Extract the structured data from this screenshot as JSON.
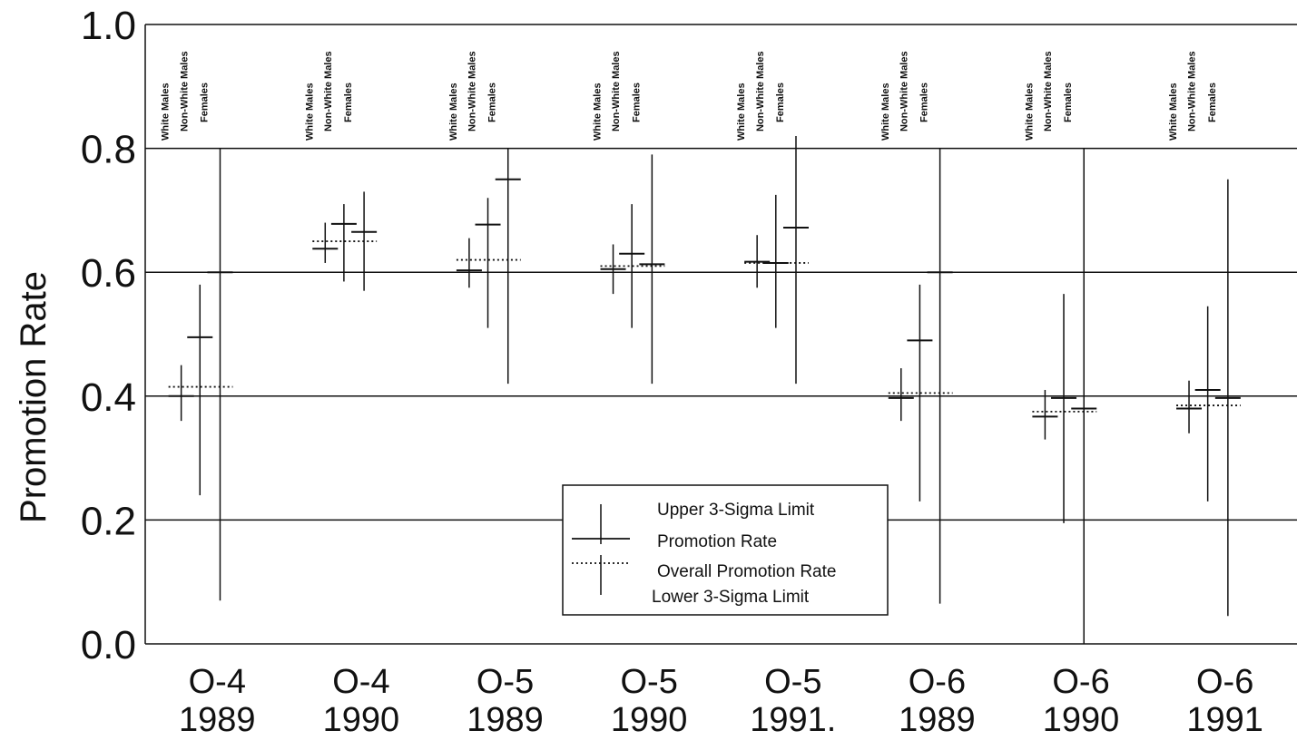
{
  "chart_data": {
    "type": "scatter",
    "title": "",
    "xlabel": "",
    "ylabel": "Promotion Rate",
    "ylim": [
      0,
      1
    ],
    "yticks": [
      "0.0",
      "0.2",
      "0.4",
      "0.6",
      "0.8",
      "1.0"
    ],
    "grid": "horizontal",
    "groups": [
      {
        "line1": "O-4",
        "line2": "1989"
      },
      {
        "line1": "O-4",
        "line2": "1990"
      },
      {
        "line1": "O-5",
        "line2": "1989"
      },
      {
        "line1": "O-5",
        "line2": "1990"
      },
      {
        "line1": "O-5",
        "line2": "1991."
      },
      {
        "line1": "O-6",
        "line2": "1989"
      },
      {
        "line1": "O-6",
        "line2": "1990"
      },
      {
        "line1": "O-6",
        "line2": "1991"
      }
    ],
    "subgroups": [
      "White Males",
      "Non-White Males",
      "Females"
    ],
    "overall_rates": [
      0.415,
      0.65,
      0.62,
      0.61,
      0.615,
      0.405,
      0.375,
      0.385
    ],
    "data": [
      [
        {
          "rate": 0.4,
          "upper": 0.45,
          "lower": 0.36
        },
        {
          "rate": 0.495,
          "upper": 0.58,
          "lower": 0.24
        },
        {
          "rate": 0.6,
          "upper": 0.8,
          "lower": 0.07
        }
      ],
      [
        {
          "rate": 0.638,
          "upper": 0.68,
          "lower": 0.615
        },
        {
          "rate": 0.678,
          "upper": 0.71,
          "lower": 0.585
        },
        {
          "rate": 0.665,
          "upper": 0.73,
          "lower": 0.57
        }
      ],
      [
        {
          "rate": 0.603,
          "upper": 0.655,
          "lower": 0.575
        },
        {
          "rate": 0.677,
          "upper": 0.72,
          "lower": 0.51
        },
        {
          "rate": 0.75,
          "upper": 0.8,
          "lower": 0.42
        }
      ],
      [
        {
          "rate": 0.605,
          "upper": 0.645,
          "lower": 0.565
        },
        {
          "rate": 0.63,
          "upper": 0.71,
          "lower": 0.51
        },
        {
          "rate": 0.613,
          "upper": 0.79,
          "lower": 0.42
        }
      ],
      [
        {
          "rate": 0.617,
          "upper": 0.66,
          "lower": 0.575
        },
        {
          "rate": 0.615,
          "upper": 0.725,
          "lower": 0.51
        },
        {
          "rate": 0.672,
          "upper": 0.82,
          "lower": 0.42
        }
      ],
      [
        {
          "rate": 0.397,
          "upper": 0.445,
          "lower": 0.36
        },
        {
          "rate": 0.49,
          "upper": 0.58,
          "lower": 0.23
        },
        {
          "rate": 0.6,
          "upper": 0.8,
          "lower": 0.065
        }
      ],
      [
        {
          "rate": 0.367,
          "upper": 0.41,
          "lower": 0.33
        },
        {
          "rate": 0.397,
          "upper": 0.565,
          "lower": 0.195
        },
        {
          "rate": 0.38,
          "upper": 0.8,
          "lower": 0.0
        }
      ],
      [
        {
          "rate": 0.38,
          "upper": 0.425,
          "lower": 0.34
        },
        {
          "rate": 0.41,
          "upper": 0.545,
          "lower": 0.23
        },
        {
          "rate": 0.397,
          "upper": 0.75,
          "lower": 0.045
        }
      ]
    ],
    "legend": {
      "position": "lower-center",
      "entries": [
        {
          "label": "Upper 3-Sigma Limit",
          "style": "vertical-line"
        },
        {
          "label": "Promotion Rate",
          "style": "solid"
        },
        {
          "label": "Overall Promotion Rate",
          "style": "dotted"
        },
        {
          "label": "Lower 3-Sigma Limit",
          "style": "vertical-line"
        }
      ]
    },
    "colors": {
      "ink": "#111111",
      "background": "#ffffff"
    }
  }
}
